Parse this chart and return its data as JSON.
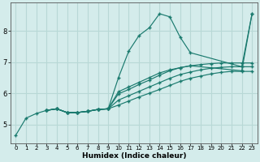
{
  "xlabel": "Humidex (Indice chaleur)",
  "ylabel": "",
  "bg_color": "#d4eceb",
  "grid_color": "#b8d8d6",
  "line_color": "#1a7a6e",
  "xlim": [
    -0.5,
    23.5
  ],
  "ylim": [
    4.4,
    8.9
  ],
  "xticks": [
    0,
    1,
    2,
    3,
    4,
    5,
    6,
    7,
    8,
    9,
    10,
    11,
    12,
    13,
    14,
    15,
    16,
    17,
    18,
    19,
    20,
    21,
    22,
    23
  ],
  "yticks": [
    5,
    6,
    7,
    8
  ],
  "series": [
    {
      "x": [
        0,
        1,
        2,
        3,
        4,
        5,
        6,
        7,
        8,
        9,
        10,
        11,
        12,
        13,
        14,
        15,
        16,
        17,
        22,
        23
      ],
      "y": [
        4.65,
        5.2,
        5.35,
        5.45,
        5.5,
        5.38,
        5.38,
        5.42,
        5.48,
        5.5,
        6.5,
        7.35,
        7.85,
        8.1,
        8.55,
        8.45,
        7.8,
        7.3,
        6.85,
        8.55
      ]
    },
    {
      "x": [
        3,
        4,
        5,
        6,
        7,
        8,
        9,
        10,
        11,
        12,
        13,
        14,
        15,
        16,
        17,
        18,
        19,
        20,
        21,
        22,
        23
      ],
      "y": [
        5.45,
        5.5,
        5.38,
        5.38,
        5.42,
        5.48,
        5.5,
        5.98,
        6.12,
        6.28,
        6.42,
        6.58,
        6.72,
        6.82,
        6.88,
        6.92,
        6.95,
        6.97,
        6.97,
        6.97,
        6.97
      ]
    },
    {
      "x": [
        3,
        4,
        5,
        6,
        7,
        8,
        9,
        10,
        11,
        12,
        13,
        14,
        15,
        16,
        17,
        22,
        23
      ],
      "y": [
        5.45,
        5.5,
        5.38,
        5.38,
        5.42,
        5.48,
        5.5,
        6.05,
        6.2,
        6.35,
        6.5,
        6.65,
        6.75,
        6.82,
        6.88,
        6.72,
        8.55
      ]
    },
    {
      "x": [
        3,
        4,
        5,
        6,
        7,
        8,
        9,
        10,
        11,
        12,
        13,
        14,
        15,
        16,
        17,
        18,
        19,
        20,
        21,
        22,
        23
      ],
      "y": [
        5.45,
        5.5,
        5.38,
        5.38,
        5.42,
        5.48,
        5.5,
        5.78,
        5.92,
        6.06,
        6.2,
        6.34,
        6.48,
        6.6,
        6.68,
        6.75,
        6.8,
        6.83,
        6.85,
        6.85,
        6.85
      ]
    },
    {
      "x": [
        3,
        4,
        5,
        6,
        7,
        8,
        9,
        10,
        11,
        12,
        13,
        14,
        15,
        16,
        17,
        18,
        19,
        20,
        21,
        22,
        23
      ],
      "y": [
        5.45,
        5.5,
        5.38,
        5.38,
        5.42,
        5.48,
        5.5,
        5.62,
        5.75,
        5.88,
        6.0,
        6.12,
        6.25,
        6.38,
        6.48,
        6.55,
        6.62,
        6.67,
        6.7,
        6.7,
        6.7
      ]
    }
  ]
}
